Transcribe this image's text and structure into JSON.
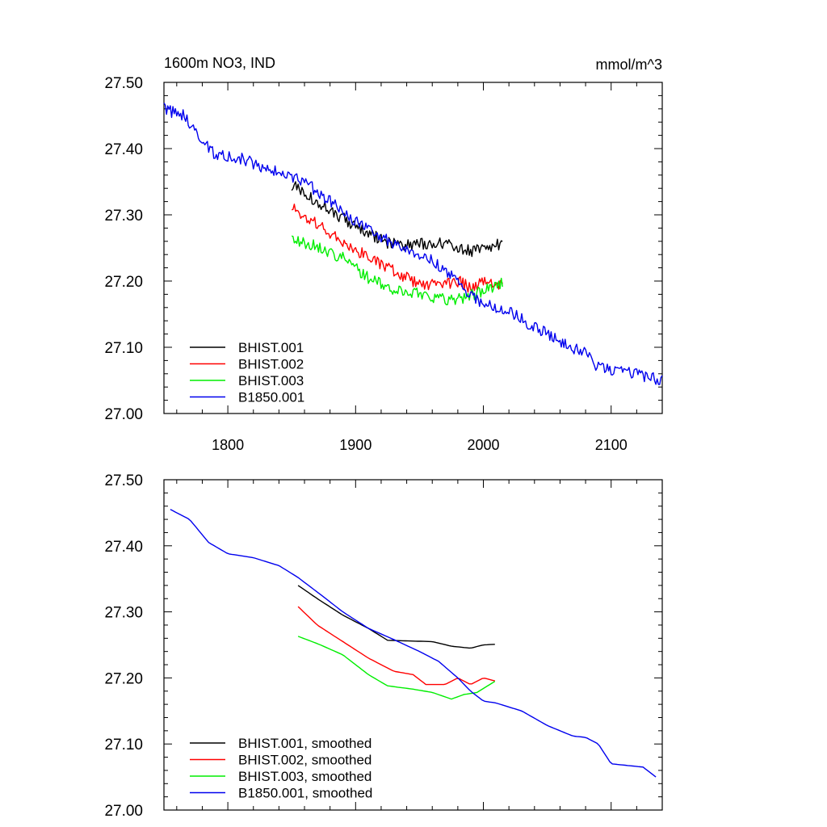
{
  "page": {
    "title_left": "1600m NO3, IND",
    "title_right": "mmol/m^3"
  },
  "colors": {
    "BHIST.001": "#000000",
    "BHIST.002": "#ff0000",
    "BHIST.003": "#00ee00",
    "B1850.001": "#0000ee"
  },
  "chart_data": [
    {
      "type": "line",
      "title": "1600m NO3, IND",
      "units": "mmol/m^3",
      "xlabel": "",
      "ylabel": "",
      "xlim": [
        1750,
        2140
      ],
      "ylim": [
        27.0,
        27.5
      ],
      "xticks": [
        1800,
        1900,
        2000,
        2100
      ],
      "yticks": [
        27.0,
        27.1,
        27.2,
        27.3,
        27.4,
        27.5
      ],
      "ytick_labels": [
        "27.00",
        "27.10",
        "27.20",
        "27.30",
        "27.40",
        "27.50"
      ],
      "legend_position": "bottom-left",
      "noise": true,
      "series": [
        {
          "name": "BHIST.001",
          "color": "#000000",
          "anchors": [
            [
              1850,
              27.345
            ],
            [
              1870,
              27.32
            ],
            [
              1890,
              27.295
            ],
            [
              1910,
              27.272
            ],
            [
              1925,
              27.258
            ],
            [
              1940,
              27.255
            ],
            [
              1960,
              27.258
            ],
            [
              1980,
              27.252
            ],
            [
              1990,
              27.245
            ],
            [
              2000,
              27.252
            ],
            [
              2015,
              27.255
            ]
          ]
        },
        {
          "name": "BHIST.002",
          "color": "#ff0000",
          "anchors": [
            [
              1850,
              27.31
            ],
            [
              1870,
              27.285
            ],
            [
              1890,
              27.26
            ],
            [
              1910,
              27.235
            ],
            [
              1930,
              27.215
            ],
            [
              1950,
              27.195
            ],
            [
              1970,
              27.195
            ],
            [
              1980,
              27.2
            ],
            [
              1990,
              27.19
            ],
            [
              2000,
              27.2
            ],
            [
              2015,
              27.192
            ]
          ]
        },
        {
          "name": "BHIST.003",
          "color": "#00ee00",
          "anchors": [
            [
              1850,
              27.265
            ],
            [
              1870,
              27.252
            ],
            [
              1890,
              27.235
            ],
            [
              1910,
              27.205
            ],
            [
              1930,
              27.185
            ],
            [
              1950,
              27.182
            ],
            [
              1970,
              27.172
            ],
            [
              1985,
              27.175
            ],
            [
              2000,
              27.185
            ],
            [
              2015,
              27.198
            ]
          ]
        },
        {
          "name": "B1850.001",
          "color": "#0000ee",
          "anchors": [
            [
              1750,
              27.46
            ],
            [
              1765,
              27.45
            ],
            [
              1780,
              27.41
            ],
            [
              1790,
              27.39
            ],
            [
              1810,
              27.385
            ],
            [
              1830,
              27.37
            ],
            [
              1845,
              27.36
            ],
            [
              1860,
              27.35
            ],
            [
              1880,
              27.32
            ],
            [
              1900,
              27.29
            ],
            [
              1920,
              27.265
            ],
            [
              1940,
              27.25
            ],
            [
              1960,
              27.23
            ],
            [
              1980,
              27.2
            ],
            [
              1990,
              27.18
            ],
            [
              2000,
              27.165
            ],
            [
              2020,
              27.155
            ],
            [
              2040,
              27.13
            ],
            [
              2060,
              27.11
            ],
            [
              2080,
              27.09
            ],
            [
              2090,
              27.07
            ],
            [
              2100,
              27.065
            ],
            [
              2120,
              27.06
            ],
            [
              2140,
              27.05
            ]
          ]
        }
      ]
    },
    {
      "type": "line",
      "title": "",
      "xlabel": "",
      "ylabel": "",
      "xlim": [
        1750,
        2140
      ],
      "ylim": [
        27.0,
        27.5
      ],
      "xticks": [
        1800,
        1900,
        2000,
        2100
      ],
      "yticks": [
        27.0,
        27.1,
        27.2,
        27.3,
        27.4,
        27.5
      ],
      "ytick_labels": [
        "27.00",
        "27.10",
        "27.20",
        "27.30",
        "27.40",
        "27.50"
      ],
      "legend_position": "bottom-left",
      "noise": false,
      "series": [
        {
          "name": "BHIST.001, smoothed",
          "color": "#000000",
          "anchors": [
            [
              1855,
              27.34
            ],
            [
              1870,
              27.32
            ],
            [
              1890,
              27.295
            ],
            [
              1910,
              27.275
            ],
            [
              1925,
              27.257
            ],
            [
              1940,
              27.256
            ],
            [
              1960,
              27.255
            ],
            [
              1975,
              27.248
            ],
            [
              1990,
              27.245
            ],
            [
              2000,
              27.25
            ],
            [
              2010,
              27.251
            ]
          ]
        },
        {
          "name": "BHIST.002, smoothed",
          "color": "#ff0000",
          "anchors": [
            [
              1855,
              27.308
            ],
            [
              1870,
              27.28
            ],
            [
              1890,
              27.255
            ],
            [
              1910,
              27.23
            ],
            [
              1930,
              27.21
            ],
            [
              1945,
              27.205
            ],
            [
              1955,
              27.19
            ],
            [
              1970,
              27.19
            ],
            [
              1980,
              27.2
            ],
            [
              1990,
              27.19
            ],
            [
              2000,
              27.2
            ],
            [
              2010,
              27.195
            ]
          ]
        },
        {
          "name": "BHIST.003, smoothed",
          "color": "#00ee00",
          "anchors": [
            [
              1855,
              27.263
            ],
            [
              1870,
              27.252
            ],
            [
              1890,
              27.235
            ],
            [
              1910,
              27.205
            ],
            [
              1925,
              27.188
            ],
            [
              1945,
              27.183
            ],
            [
              1960,
              27.178
            ],
            [
              1975,
              27.168
            ],
            [
              1985,
              27.175
            ],
            [
              1995,
              27.178
            ],
            [
              2010,
              27.196
            ]
          ]
        },
        {
          "name": "B1850.001, smoothed",
          "color": "#0000ee",
          "anchors": [
            [
              1755,
              27.455
            ],
            [
              1770,
              27.44
            ],
            [
              1785,
              27.405
            ],
            [
              1800,
              27.388
            ],
            [
              1820,
              27.382
            ],
            [
              1840,
              27.37
            ],
            [
              1855,
              27.352
            ],
            [
              1870,
              27.33
            ],
            [
              1890,
              27.3
            ],
            [
              1910,
              27.275
            ],
            [
              1930,
              27.258
            ],
            [
              1950,
              27.24
            ],
            [
              1965,
              27.225
            ],
            [
              1980,
              27.2
            ],
            [
              1990,
              27.18
            ],
            [
              2000,
              27.165
            ],
            [
              2010,
              27.162
            ],
            [
              2030,
              27.15
            ],
            [
              2050,
              27.128
            ],
            [
              2070,
              27.112
            ],
            [
              2080,
              27.11
            ],
            [
              2090,
              27.1
            ],
            [
              2100,
              27.07
            ],
            [
              2110,
              27.068
            ],
            [
              2125,
              27.065
            ],
            [
              2135,
              27.05
            ]
          ]
        }
      ]
    }
  ]
}
